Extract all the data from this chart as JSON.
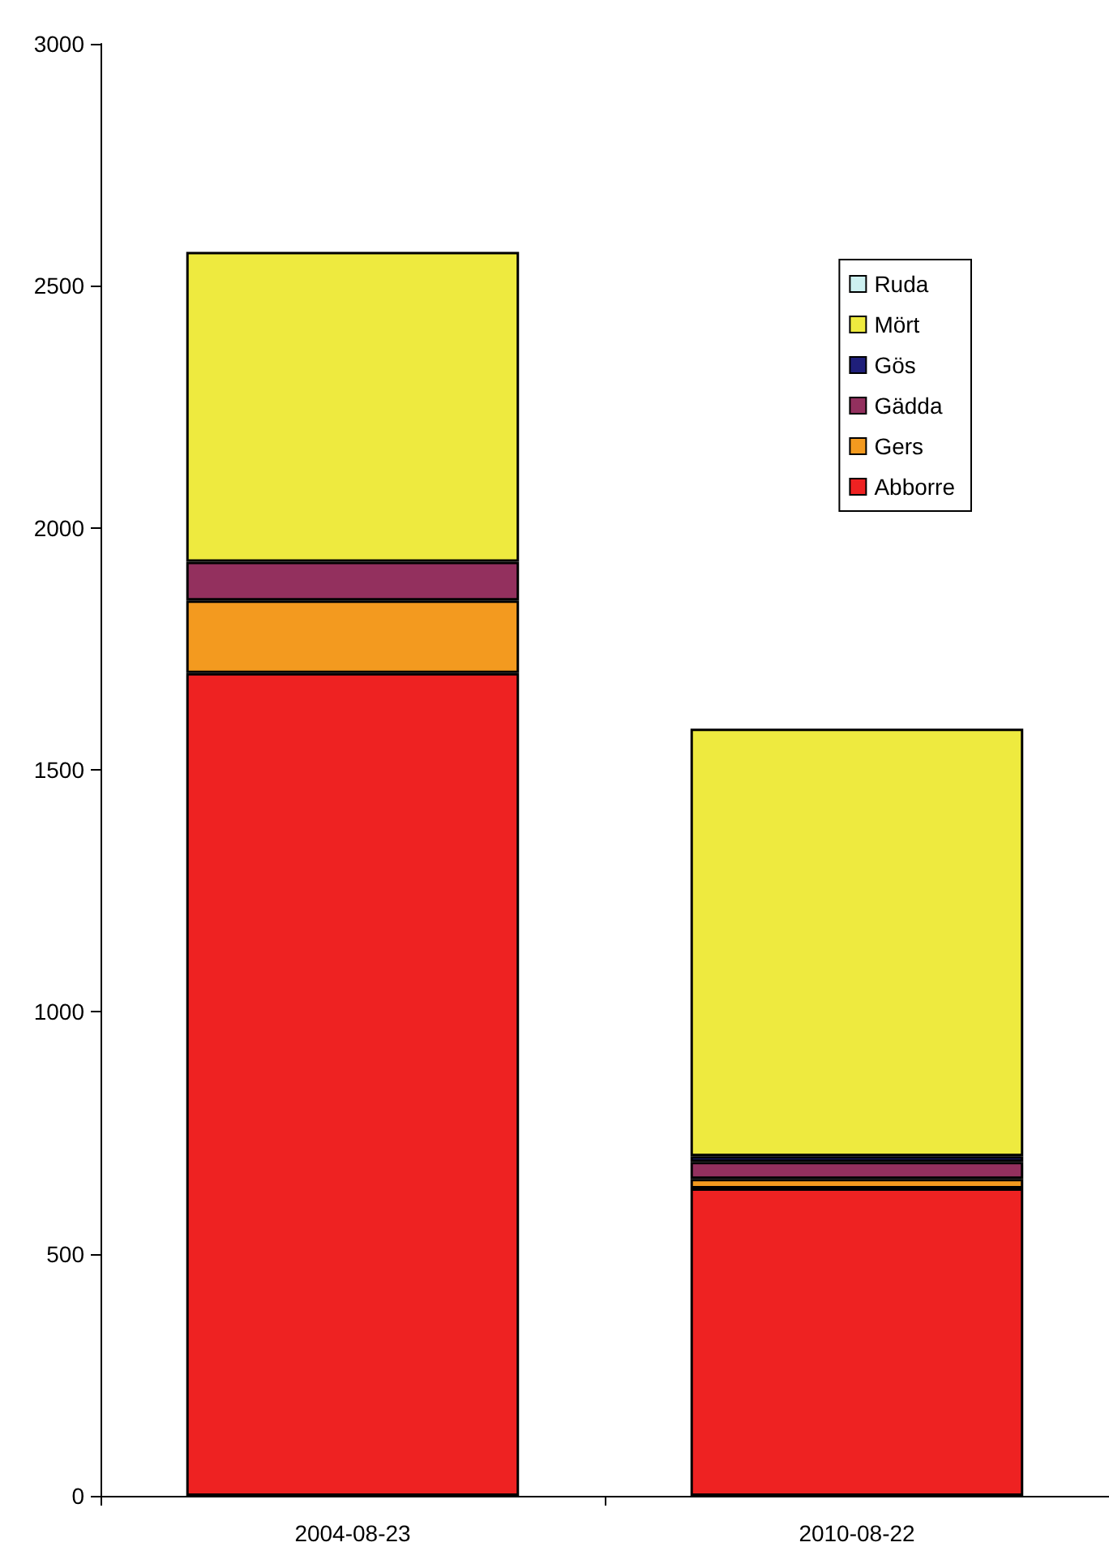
{
  "chart_data": {
    "type": "bar",
    "stacked": true,
    "categories": [
      "2004-08-23",
      "2010-08-22"
    ],
    "series": [
      {
        "name": "Abborre",
        "color": "#ee2222",
        "values": [
          1700,
          635
        ]
      },
      {
        "name": "Gers",
        "color": "#f39a1f",
        "values": [
          150,
          20
        ]
      },
      {
        "name": "Gädda",
        "color": "#93305e",
        "values": [
          80,
          35
        ]
      },
      {
        "name": "Gös",
        "color": "#1f1f7a",
        "values": [
          null,
          12
        ]
      },
      {
        "name": "Mört",
        "color": "#eeea3f",
        "values": [
          640,
          883
        ]
      },
      {
        "name": "Ruda",
        "color": "#ccf0f0",
        "values": [
          null,
          null
        ]
      }
    ],
    "ylim": [
      0,
      3000
    ],
    "yticks": [
      0,
      500,
      1000,
      1500,
      2000,
      2500,
      3000
    ],
    "grid": false,
    "legend": "top right"
  }
}
